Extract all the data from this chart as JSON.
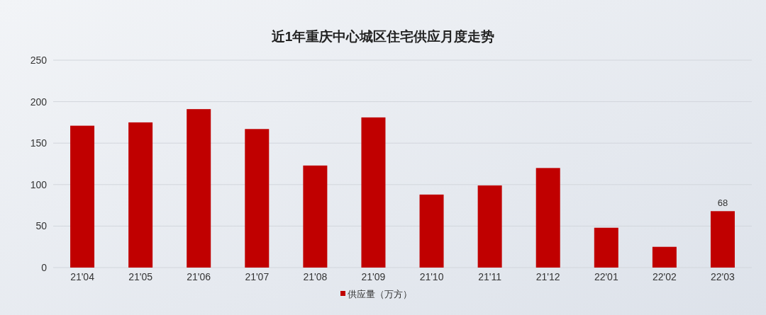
{
  "chart_data": {
    "type": "bar",
    "title": "近1年重庆中心城区住宅供应月度走势",
    "categories": [
      "21'04",
      "21'05",
      "21'06",
      "21'07",
      "21'08",
      "21'09",
      "21'10",
      "21'11",
      "21'12",
      "22'01",
      "22'02",
      "22'03"
    ],
    "series": [
      {
        "name": "供应量（万方）",
        "color": "#c00000",
        "values": [
          171,
          175,
          191,
          167,
          123,
          181,
          88,
          99,
          120,
          48,
          25,
          68
        ],
        "value_labels": [
          null,
          null,
          null,
          null,
          null,
          null,
          null,
          null,
          null,
          null,
          null,
          "68"
        ]
      }
    ],
    "ylim": [
      0,
      250
    ],
    "yticks": [
      0,
      50,
      100,
      150,
      200,
      250
    ],
    "grid": "y",
    "legend": "bottom"
  }
}
